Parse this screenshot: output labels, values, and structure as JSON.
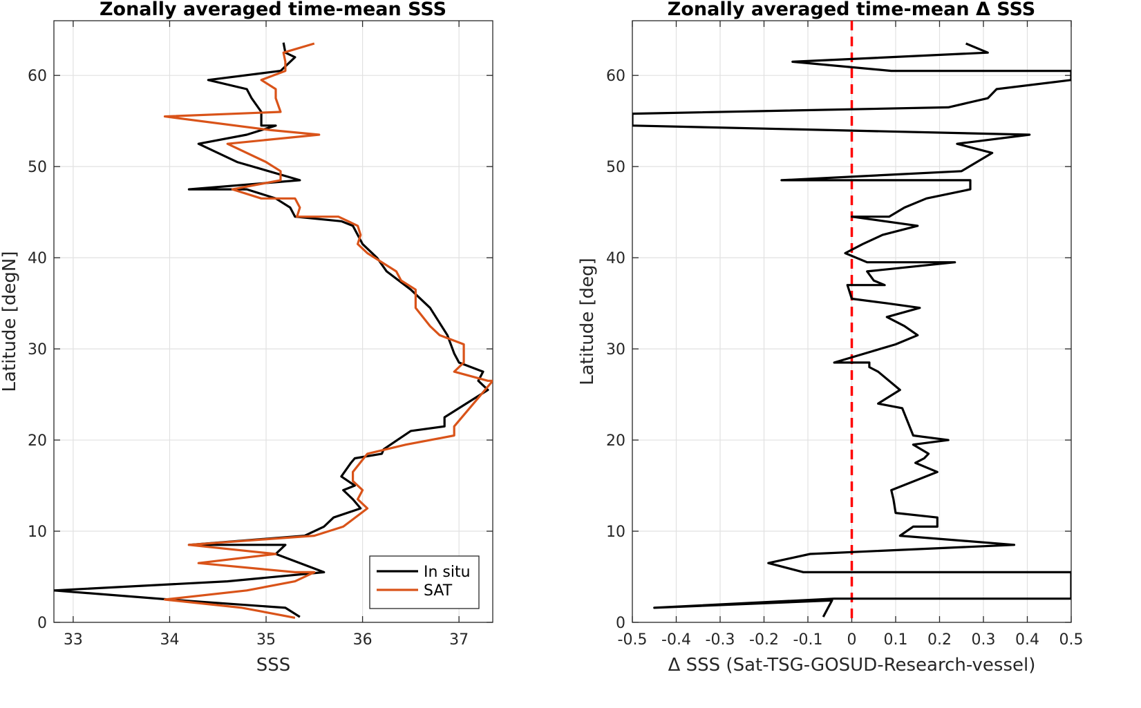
{
  "chart_data": [
    {
      "type": "line",
      "title": "Zonally averaged time-mean SSS",
      "xlabel": "SSS",
      "ylabel": "Latitude [degN]",
      "xlim": [
        32.8,
        37.35
      ],
      "ylim": [
        0,
        66
      ],
      "xticks": [
        33,
        34,
        35,
        36,
        37
      ],
      "yticks": [
        0,
        10,
        20,
        30,
        40,
        50,
        60
      ],
      "grid": true,
      "legend": "bottom-right",
      "series": [
        {
          "name": "In situ",
          "color": "#000000",
          "x": [
            35.35,
            35.2,
            34.0,
            32.8,
            34.6,
            35.6,
            35.1,
            35.2,
            34.2,
            35.4,
            35.6,
            35.7,
            35.98,
            35.9,
            35.8,
            35.92,
            35.78,
            35.88,
            35.92,
            36.2,
            36.22,
            36.5,
            36.85,
            36.85,
            37.0,
            37.3,
            37.2,
            37.25,
            37.0,
            36.95,
            36.88,
            36.7,
            36.5,
            36.25,
            36.15,
            36.0,
            35.95,
            35.9,
            35.78,
            35.3,
            35.25,
            35.1,
            34.8,
            34.2,
            35.35,
            34.7,
            34.3,
            34.8,
            35.1,
            34.95,
            34.95,
            34.85,
            34.8,
            34.4,
            35.15,
            35.3,
            35.2,
            35.18
          ],
          "y": [
            0.6,
            1.6,
            2.5,
            3.5,
            4.5,
            5.5,
            7.5,
            8.5,
            8.5,
            9.5,
            10.5,
            11.5,
            12.5,
            13.5,
            14.5,
            15.0,
            16.0,
            17.5,
            18.0,
            18.5,
            19.0,
            21.0,
            21.5,
            22.5,
            23.5,
            25.5,
            26.5,
            27.5,
            28.5,
            29.5,
            31.5,
            34.5,
            36.5,
            38.5,
            40.0,
            41.5,
            42.5,
            43.5,
            44.0,
            44.5,
            45.5,
            46.5,
            47.5,
            47.5,
            48.5,
            50.5,
            52.5,
            53.5,
            54.5,
            54.5,
            56.0,
            57.5,
            58.5,
            59.5,
            60.5,
            62.0,
            62.5,
            63.6
          ]
        },
        {
          "name": "SAT",
          "color": "#d95319",
          "x": [
            35.3,
            34.75,
            33.95,
            34.8,
            35.3,
            35.5,
            35.3,
            34.3,
            35.1,
            34.2,
            35.5,
            35.8,
            36.05,
            35.95,
            36.0,
            35.9,
            35.9,
            36.05,
            36.45,
            36.95,
            36.95,
            37.35,
            37.3,
            36.95,
            37.05,
            37.05,
            36.8,
            36.7,
            36.55,
            36.55,
            36.4,
            36.35,
            36.05,
            35.95,
            35.98,
            35.95,
            35.75,
            35.32,
            35.35,
            35.3,
            34.95,
            34.65,
            35.15,
            35.15,
            35.0,
            34.6,
            35.55,
            35.05,
            33.95,
            35.15,
            35.1,
            35.1,
            34.95,
            35.2,
            35.2,
            35.18,
            35.5
          ],
          "y": [
            0.5,
            1.6,
            2.5,
            3.5,
            4.5,
            5.5,
            5.5,
            6.5,
            7.5,
            8.5,
            9.5,
            10.5,
            12.5,
            13.5,
            14.5,
            15.5,
            16.5,
            18.5,
            19.5,
            20.5,
            21.5,
            26.5,
            26.5,
            27.5,
            28.5,
            30.5,
            31.5,
            32.5,
            34.5,
            36.5,
            37.5,
            38.5,
            40.5,
            41.5,
            42.5,
            43.5,
            44.5,
            44.5,
            45.5,
            46.5,
            46.5,
            47.5,
            48.5,
            49.5,
            50.5,
            52.5,
            53.5,
            54.0,
            55.5,
            56.0,
            57.5,
            58.5,
            59.5,
            60.5,
            61.5,
            62.5,
            63.5
          ]
        }
      ]
    },
    {
      "type": "line",
      "title": "Zonally averaged time-mean Δ SSS",
      "xlabel": "Δ SSS (Sat-TSG-GOSUD-Research-vessel)",
      "ylabel": "Latitude [deg]",
      "xlim": [
        -0.5,
        0.5
      ],
      "ylim": [
        0,
        66
      ],
      "xticks": [
        -0.5,
        -0.4,
        -0.3,
        -0.2,
        -0.1,
        0,
        0.1,
        0.2,
        0.3,
        0.4,
        0.5
      ],
      "yticks": [
        0,
        10,
        20,
        30,
        40,
        50,
        60
      ],
      "grid": true,
      "reference_line": {
        "x": 0,
        "color": "#ff0000",
        "style": "dashed"
      },
      "series": [
        {
          "color": "#000000",
          "x": [
            -0.065,
            -0.045,
            -0.45,
            -0.04,
            0.5,
            0.5,
            -0.11,
            -0.19,
            -0.095,
            0.37,
            0.11,
            0.14,
            0.195,
            0.195,
            0.1,
            0.095,
            0.09,
            0.195,
            0.145,
            0.165,
            0.175,
            0.14,
            0.22,
            0.14,
            0.115,
            0.06,
            0.11,
            0.06,
            0.04,
            0.04,
            -0.04,
            0.1,
            0.15,
            0.12,
            0.08,
            0.155,
            0.08,
            0.0,
            -0.01,
            0.075,
            0.05,
            0.035,
            0.235,
            0.035,
            -0.015,
            0.025,
            0.07,
            0.15,
            0.0,
            0.085,
            0.12,
            0.17,
            0.27,
            0.27,
            -0.16,
            0.25,
            0.32,
            0.24,
            0.405,
            -0.5,
            -0.5,
            0.22,
            0.31,
            0.33,
            0.5,
            0.5,
            0.09,
            -0.135,
            0.31,
            0.26
          ],
          "y": [
            0.6,
            2.4,
            1.6,
            2.6,
            2.6,
            5.5,
            5.5,
            6.5,
            7.5,
            8.5,
            9.5,
            10.5,
            10.5,
            11.5,
            12.0,
            13.5,
            14.5,
            16.5,
            17.5,
            18.0,
            18.5,
            19.5,
            20.0,
            20.5,
            23.5,
            24.0,
            25.5,
            27.5,
            28.0,
            28.5,
            28.5,
            30.5,
            31.5,
            32.5,
            33.5,
            34.5,
            35.0,
            35.5,
            37.0,
            37.0,
            37.5,
            38.5,
            39.5,
            39.5,
            40.5,
            41.5,
            42.5,
            43.5,
            44.5,
            44.5,
            45.5,
            46.5,
            47.5,
            48.5,
            48.5,
            49.5,
            51.5,
            52.5,
            53.5,
            54.5,
            55.8,
            56.5,
            57.5,
            58.5,
            59.5,
            60.5,
            60.5,
            61.5,
            62.5,
            63.5
          ]
        }
      ]
    }
  ]
}
